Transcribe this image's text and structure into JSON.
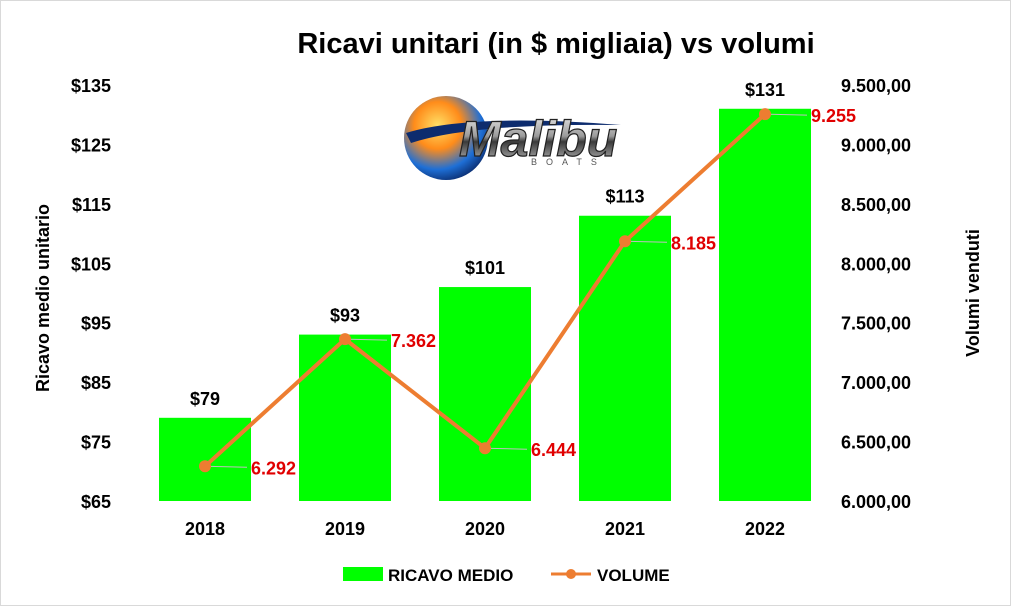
{
  "chart_data": {
    "type": "bar",
    "title": "Ricavi unitari (in $ migliaia) vs volumi",
    "categories": [
      "2018",
      "2019",
      "2020",
      "2021",
      "2022"
    ],
    "y_left": {
      "label": "Ricavo medio unitario",
      "ticks": [
        "$135",
        "$125",
        "$115",
        "$105",
        "$95",
        "$85",
        "$75",
        "$65"
      ],
      "ylim": [
        65,
        135
      ]
    },
    "y_right": {
      "label": "Volumi venduti",
      "ticks": [
        "9.500,00",
        "9.000,00",
        "8.500,00",
        "8.000,00",
        "7.500,00",
        "7.000,00",
        "6.500,00",
        "6.000,00"
      ],
      "ylim": [
        6000,
        9500
      ]
    },
    "series": [
      {
        "name": "RICAVO MEDIO",
        "type": "bar",
        "axis": "left",
        "color": "#00ff00",
        "values": [
          79,
          93,
          101,
          113,
          131
        ],
        "labels": [
          "$79",
          "$93",
          "$101",
          "$113",
          "$131"
        ]
      },
      {
        "name": "VOLUME",
        "type": "line",
        "axis": "right",
        "color": "#ed7d31",
        "label_color": "#e00000",
        "values": [
          6292,
          7362,
          6444,
          8185,
          9255
        ],
        "labels": [
          "6.292",
          "7.362",
          "6.444",
          "8.185",
          "9.255"
        ]
      }
    ],
    "legend_position": "bottom",
    "grid": false
  },
  "logo": {
    "brand": "Malibu",
    "tagline": "BOATS"
  }
}
